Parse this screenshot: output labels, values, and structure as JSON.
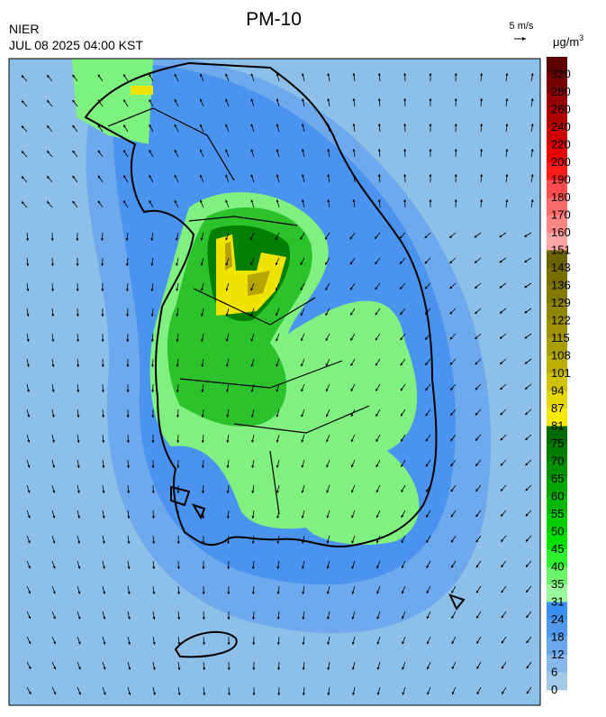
{
  "header": {
    "title": "PM-10",
    "agency": "NIER",
    "timestamp": "JUL 08 2025 04:00 KST",
    "wind_scale": "5 m/s"
  },
  "legend": {
    "unit": "μg/m",
    "unit_sup": "3",
    "levels": [
      320,
      280,
      260,
      240,
      220,
      200,
      190,
      180,
      170,
      160,
      151,
      143,
      136,
      129,
      122,
      115,
      108,
      101,
      94,
      87,
      81,
      75,
      70,
      65,
      60,
      55,
      50,
      45,
      40,
      35,
      31,
      24,
      18,
      12,
      6,
      0
    ],
    "colors": [
      "#5e0000",
      "#7a0000",
      "#950000",
      "#b00000",
      "#cc0000",
      "#e60000",
      "#ff1a1a",
      "#ff4d4d",
      "#ff6b6b",
      "#ff8585",
      "#ffa3a3",
      "#6b6300",
      "#776e00",
      "#837900",
      "#908500",
      "#9d9100",
      "#ab9e00",
      "#bcae00",
      "#d1c200",
      "#e4d600",
      "#f5ea00",
      "#006a00",
      "#007e00",
      "#009200",
      "#00a500",
      "#00b900",
      "#00cc00",
      "#00e000",
      "#2ef02e",
      "#6af56a",
      "#9cfb9c",
      "#3c8eef",
      "#5298ec",
      "#6aa6ec",
      "#86b8ea",
      "#a4cbe6"
    ]
  }
}
